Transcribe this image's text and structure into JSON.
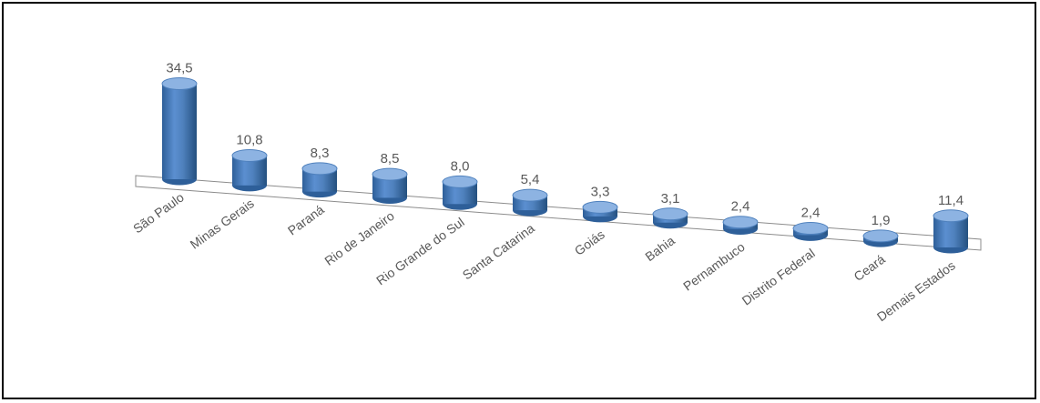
{
  "chart_data": {
    "type": "bar",
    "style": "3d-cylinder",
    "title": "",
    "xlabel": "",
    "ylabel": "",
    "categories": [
      "São Paulo",
      "Minas Gerais",
      "Paraná",
      "Rio de Janeiro",
      "Rio Grande do Sul",
      "Santa Catarina",
      "Goiás",
      "Bahia",
      "Pernambuco",
      "Distrito Federal",
      "Ceará",
      "Demais Estados"
    ],
    "values": [
      34.5,
      10.8,
      8.3,
      8.5,
      8.0,
      5.4,
      3.3,
      3.1,
      2.4,
      2.4,
      1.9,
      11.4
    ],
    "value_labels": [
      "34,5",
      "10,8",
      "8,3",
      "8,5",
      "8,0",
      "5,4",
      "3,3",
      "3,1",
      "2,4",
      "2,4",
      "1,9",
      "11,4"
    ],
    "ylim": [
      0,
      35
    ],
    "grid": false,
    "legend": "none",
    "colors": {
      "bar": "#4f81bd",
      "bar_dark": "#2e5f99",
      "bar_light": "#8db3e2",
      "label": "#595959",
      "floor_edge": "#8c8c8c"
    }
  }
}
